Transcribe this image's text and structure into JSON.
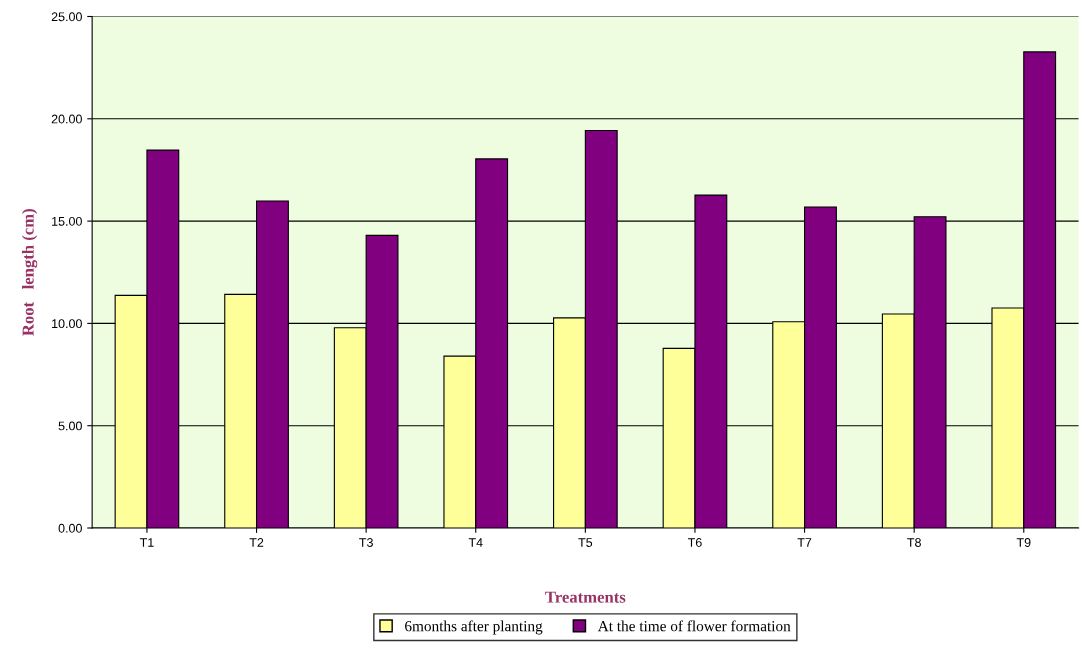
{
  "chart_data": {
    "type": "bar",
    "xlabel": "Treatments",
    "ylabel": "Root   length (cm)",
    "categories": [
      "T1",
      "T2",
      "T3",
      "T4",
      "T5",
      "T6",
      "T7",
      "T8",
      "T9"
    ],
    "series": [
      {
        "name": "6months after planting",
        "color": "#ffff99",
        "values": [
          11.37,
          11.42,
          9.79,
          8.4,
          10.27,
          8.78,
          10.08,
          10.46,
          10.75
        ]
      },
      {
        "name": "At the time of flower formation",
        "color": "#800080",
        "values": [
          18.47,
          15.98,
          14.3,
          18.04,
          19.43,
          16.27,
          15.69,
          15.21,
          23.27
        ]
      }
    ],
    "ylim": [
      0,
      25
    ],
    "yticks": [
      {
        "value": 0,
        "label": "0.00"
      },
      {
        "value": 5,
        "label": "5.00"
      },
      {
        "value": 10,
        "label": "10.00"
      },
      {
        "value": 15,
        "label": "15.00"
      },
      {
        "value": 20,
        "label": "20.00"
      },
      {
        "value": 25,
        "label": "25.00"
      }
    ],
    "grid": "y",
    "legend": "bottom"
  }
}
